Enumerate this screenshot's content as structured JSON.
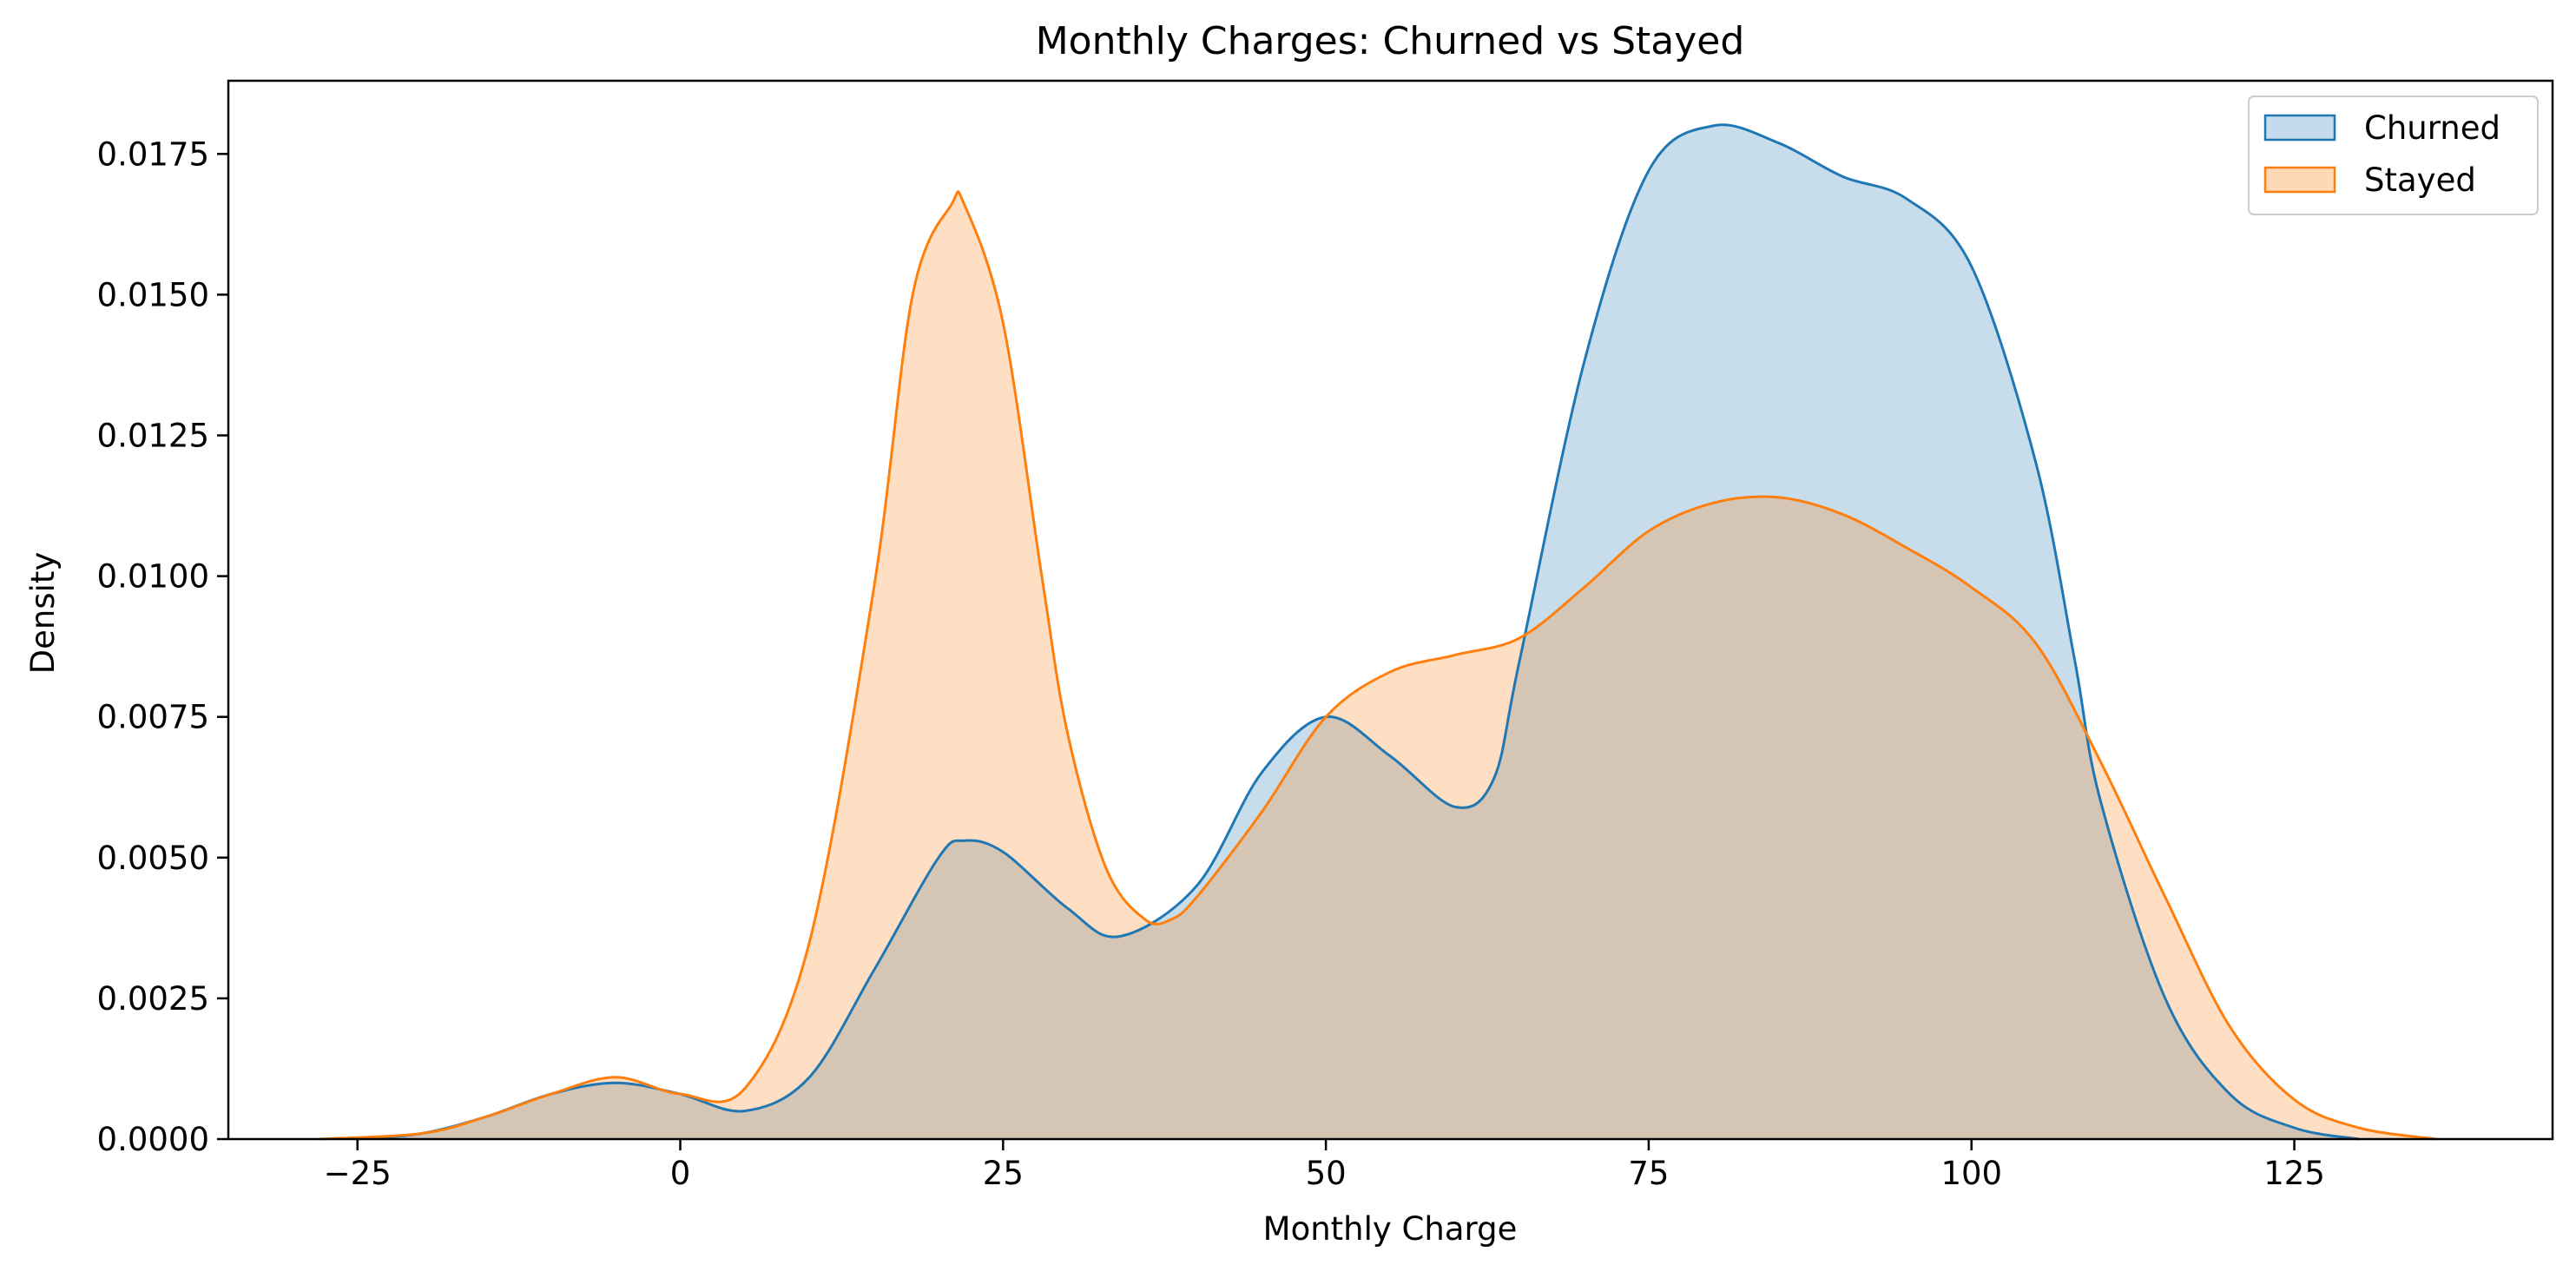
{
  "chart_data": {
    "type": "area",
    "title": "Monthly Charges: Churned vs Stayed",
    "xlabel": "Monthly Charge",
    "ylabel": "Density",
    "xlim": [
      -35,
      145
    ],
    "ylim": [
      0,
      0.0188
    ],
    "xticks": [
      -25,
      0,
      25,
      50,
      75,
      100,
      125
    ],
    "xtick_labels": [
      "−25",
      "0",
      "25",
      "50",
      "75",
      "100",
      "125"
    ],
    "yticks": [
      0,
      0.0025,
      0.005,
      0.0075,
      0.01,
      0.0125,
      0.015,
      0.0175
    ],
    "ytick_labels": [
      "0.0000",
      "0.0025",
      "0.0050",
      "0.0075",
      "0.0100",
      "0.0125",
      "0.0150",
      "0.0175"
    ],
    "grid": false,
    "legend": {
      "position": "top-right",
      "entries": [
        "Churned",
        "Stayed"
      ]
    },
    "series": [
      {
        "name": "Churned",
        "color": "#1f77b4",
        "fill": "#c4dbed",
        "x": [
          -25,
          -20,
          -15,
          -10,
          -5,
          0,
          5,
          10,
          15,
          20,
          22,
          25,
          30,
          34,
          40,
          45,
          50,
          55,
          60,
          63,
          65,
          70,
          75,
          80,
          85,
          90,
          95,
          100,
          105,
          108,
          110,
          115,
          120,
          125,
          130
        ],
        "y": [
          0,
          0.0001,
          0.0004,
          0.0008,
          0.001,
          0.0008,
          0.0005,
          0.0011,
          0.003,
          0.005,
          0.0053,
          0.0051,
          0.0041,
          0.0036,
          0.0045,
          0.0065,
          0.0075,
          0.0068,
          0.0059,
          0.0064,
          0.0085,
          0.0138,
          0.0172,
          0.018,
          0.0177,
          0.0171,
          0.0167,
          0.0155,
          0.012,
          0.0085,
          0.006,
          0.0025,
          0.0008,
          0.0002,
          0
        ]
      },
      {
        "name": "Stayed",
        "color": "#ff7f0e",
        "fill": "#ffd9b6",
        "x": [
          -28,
          -20,
          -15,
          -10,
          -5,
          0,
          5,
          10,
          15,
          18,
          21,
          22,
          25,
          28,
          30,
          33,
          36,
          38,
          40,
          45,
          50,
          55,
          60,
          65,
          70,
          75,
          80,
          85,
          90,
          95,
          100,
          105,
          110,
          115,
          120,
          125,
          130,
          136
        ],
        "y": [
          0,
          0.0001,
          0.0004,
          0.0008,
          0.0011,
          0.0008,
          0.0009,
          0.0035,
          0.0098,
          0.015,
          0.0166,
          0.0166,
          0.0145,
          0.01,
          0.0072,
          0.0048,
          0.0039,
          0.0039,
          0.0043,
          0.0058,
          0.0075,
          0.0083,
          0.0086,
          0.0089,
          0.0098,
          0.0108,
          0.0113,
          0.0114,
          0.0111,
          0.0105,
          0.0098,
          0.0088,
          0.0067,
          0.0043,
          0.002,
          0.0007,
          0.0002,
          0
        ]
      }
    ]
  }
}
